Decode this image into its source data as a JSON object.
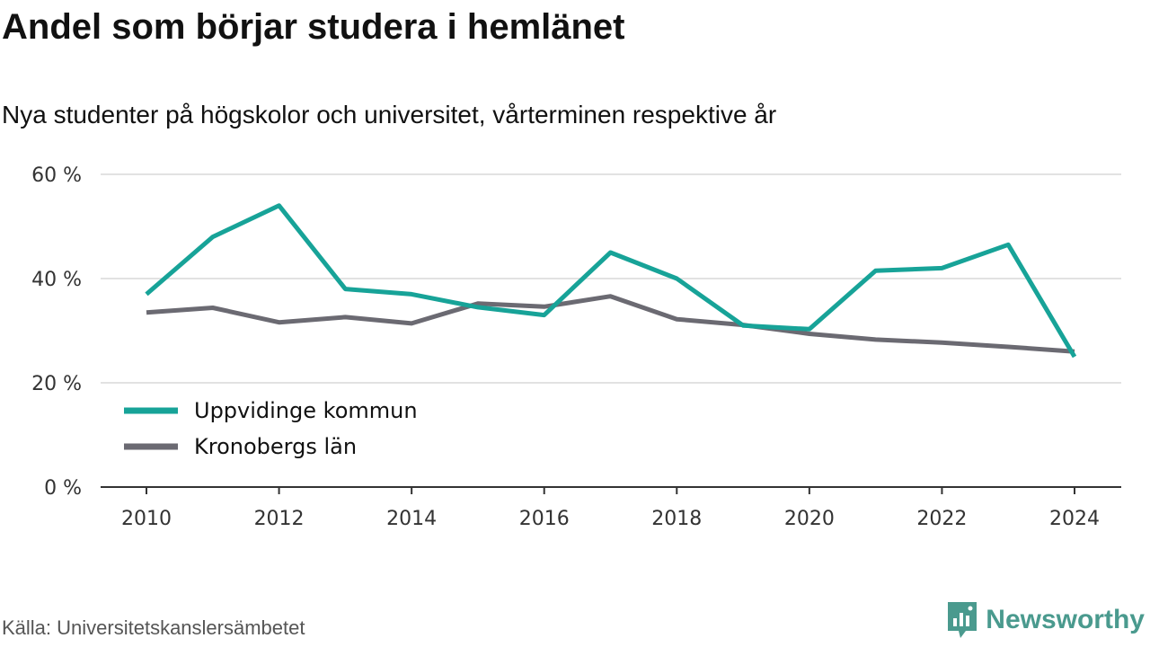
{
  "title": "Andel som börjar studera i hemlänet",
  "subtitle": "Nya studenter på högskolor och universitet, vårterminen respektive år",
  "source": "Källa: Universitetskanslersämbetet",
  "brand": {
    "name": "Newsworthy",
    "icon": "newsworthy-logo-icon",
    "color": "#4a9a8e"
  },
  "chart_data": {
    "type": "line",
    "x": [
      2010,
      2011,
      2012,
      2013,
      2014,
      2015,
      2016,
      2017,
      2018,
      2019,
      2020,
      2021,
      2022,
      2023,
      2024
    ],
    "series": [
      {
        "name": "Uppvidinge kommun",
        "color": "#17a398",
        "values": [
          37,
          48,
          54,
          38,
          37,
          34.5,
          33,
          45,
          40,
          31,
          30.3,
          41.5,
          42,
          46.5,
          25
        ]
      },
      {
        "name": "Kronobergs län",
        "color": "#6b6a72",
        "values": [
          33.5,
          34.4,
          31.6,
          32.6,
          31.4,
          35.2,
          34.6,
          36.6,
          32.2,
          31.1,
          29.4,
          28.3,
          27.7,
          26.9,
          26
        ]
      }
    ],
    "ylim": [
      0,
      60
    ],
    "yticks": [
      0,
      20,
      40,
      60
    ],
    "ytick_labels": [
      "0 %",
      "20 %",
      "40 %",
      "60 %"
    ],
    "xticks": [
      2010,
      2012,
      2014,
      2016,
      2018,
      2020,
      2022,
      2024
    ],
    "xtick_labels": [
      "2010",
      "2012",
      "2014",
      "2016",
      "2018",
      "2020",
      "2022",
      "2024"
    ],
    "grid": true,
    "legend_position": "bottom-left",
    "xlabel": "",
    "ylabel": ""
  }
}
